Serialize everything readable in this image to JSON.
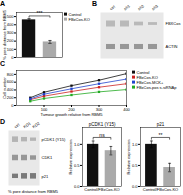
{
  "chart_data": [
    {
      "type": "bar",
      "title": "A",
      "categories": [
        "Control",
        "FBxCos-KO"
      ],
      "values": [
        460,
        190
      ],
      "error_bars": [
        15,
        18
      ],
      "colors": [
        "#111111",
        "#aaaaaa"
      ],
      "ylabel": "% pore distance from RBM5",
      "ylim": [
        0,
        550
      ],
      "yticks": [
        0,
        100,
        200,
        300,
        400,
        500
      ],
      "annotations": [
        "***"
      ],
      "legend": "right",
      "tick_labels": "y"
    },
    {
      "type": "blot",
      "title": "B",
      "categories": [
        "ctrl",
        "sh1",
        "sh2",
        "sh3"
      ],
      "series": [
        {
          "name": "FBXCos",
          "color": "#b0b0b0",
          "values": [
            0.13,
            0.13,
            0.08,
            0.06
          ]
        },
        {
          "name": "ACTIN",
          "color": "#888888",
          "values": [
            0.11,
            0.11,
            0.11,
            0.11
          ]
        }
      ]
    },
    {
      "type": "line",
      "title": "C",
      "x": [
        50,
        100,
        200,
        300,
        400
      ],
      "series": [
        {
          "name": "Control",
          "color": "#111111",
          "marker": "square",
          "values": [
            200,
            340,
            510,
            650,
            820
          ]
        },
        {
          "name": "FBxCos-KO",
          "color": "#cc2222",
          "marker": "square",
          "values": [
            150,
            240,
            360,
            470,
            560
          ]
        },
        {
          "name": "FBxCos-MCK+",
          "color": "#2244cc",
          "marker": "square",
          "values": [
            170,
            290,
            430,
            560,
            680
          ]
        },
        {
          "name": "FBxCos-pos s-siRNAp",
          "color": "#22aa22",
          "marker": "square",
          "values": [
            110,
            180,
            270,
            350,
            410
          ]
        }
      ],
      "xlabel": "Tumour growth relative from RBM5",
      "ylabel": "Cell number",
      "xlim": [
        0,
        400
      ],
      "ylim": [
        0,
        900
      ],
      "xticks": [
        100,
        200,
        300,
        400
      ],
      "yticks": [
        0,
        200,
        400,
        600,
        800
      ],
      "legend": "right"
    },
    {
      "type": "blot",
      "title": "D",
      "categories": [
        "ctrl",
        "KO1",
        "KO2"
      ],
      "series": [
        {
          "name": "pCDK1 (Y15)",
          "color": "#aaaaaa",
          "values": [
            0.1,
            0.08,
            0.06
          ]
        },
        {
          "name": "CDK1",
          "color": "#888888",
          "values": [
            0.1,
            0.1,
            0.08
          ]
        },
        {
          "name": "p21",
          "color": "#666666",
          "values": [
            0.08,
            0.1,
            0.1
          ]
        }
      ],
      "xlabel": "% pore distance from RBM5"
    },
    {
      "type": "bar",
      "title": "pCDK1 (Y15)",
      "categories": [
        null,
        null
      ],
      "values": [
        1.0,
        0.85
      ],
      "error_bars": [
        0.08,
        0.1
      ],
      "colors": [
        "#111111",
        "#aaaaaa"
      ],
      "xlabel": "Control/FBxCos-KO",
      "ylabel": "Relative expression",
      "ylim": [
        0,
        1.4
      ],
      "yticks": [
        {
          "value": 0,
          "label": "0.0"
        },
        0.5,
        {
          "value": 1.0,
          "label": "1.0"
        }
      ],
      "annotations": [
        "ns"
      ],
      "tick_labels": "y"
    },
    {
      "type": "bar",
      "title": "p21",
      "categories": [
        null,
        null
      ],
      "values": [
        1.0,
        0.45
      ],
      "error_bars": [
        0.08,
        0.1
      ],
      "colors": [
        "#111111",
        "#aaaaaa"
      ],
      "xlabel": "Control/FBxCos-KO",
      "ylabel": "Relative expression",
      "ylim": [
        0,
        1.4
      ],
      "yticks": [
        {
          "value": 0,
          "label": "0.0"
        },
        0.5,
        {
          "value": 1.0,
          "label": "1.0"
        }
      ],
      "annotations": [
        "**"
      ],
      "tick_labels": "y"
    }
  ]
}
